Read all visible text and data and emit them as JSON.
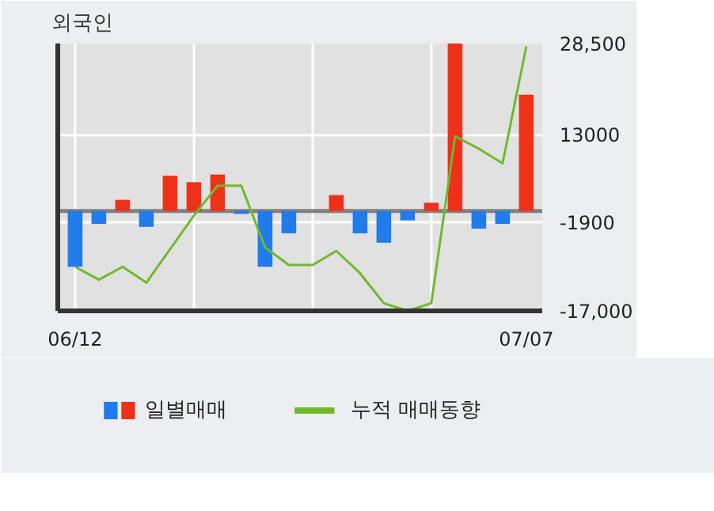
{
  "chart_data": {
    "type": "bar",
    "title": "외국인",
    "categories": [
      "06/12",
      null,
      null,
      null,
      null,
      null,
      null,
      null,
      null,
      null,
      null,
      null,
      null,
      null,
      null,
      null,
      null,
      null,
      null,
      "07/07"
    ],
    "series": [
      {
        "name": "일별매매",
        "colors": [
          "#1f7cea",
          "#1f7cea",
          "#f0311a",
          "#1f7cea",
          "#f0311a",
          "#f0311a",
          "#f0311a",
          "#1f7cea",
          "#1f7cea",
          "#1f7cea",
          "#f0311a",
          "#f0311a",
          "#1f7cea",
          "#1f7cea",
          "#1f7cea",
          "#f0311a",
          "#f0311a",
          "#1f7cea",
          "#1f7cea",
          "#f0311a"
        ],
        "values": [
          -9500,
          -2200,
          1900,
          -2700,
          6000,
          4900,
          6200,
          -500,
          -9500,
          -3800,
          0,
          2700,
          -3800,
          -5400,
          -1600,
          1400,
          28500,
          -3000,
          -2200,
          19800
        ]
      },
      {
        "name": "누적 매매동향",
        "type": "line",
        "color": "#6fba2c",
        "values": [
          -9500,
          -11700,
          -9500,
          -12200,
          -6500,
          -800,
          4300,
          4300,
          -6200,
          -9200,
          -9200,
          -6800,
          -10600,
          -15700,
          -17000,
          -15700,
          12700,
          10600,
          8100,
          28000
        ]
      }
    ],
    "ylim": [
      -17000,
      28500
    ],
    "yticks": [
      {
        "value": 28500,
        "label": "28,500"
      },
      13000,
      -1900,
      {
        "value": -17000,
        "label": "-17,000"
      }
    ],
    "ref_lines": [
      {
        "axis": "y",
        "value": 0,
        "label": null,
        "color": "#808080"
      }
    ],
    "grid": true,
    "legend": "bottom"
  }
}
